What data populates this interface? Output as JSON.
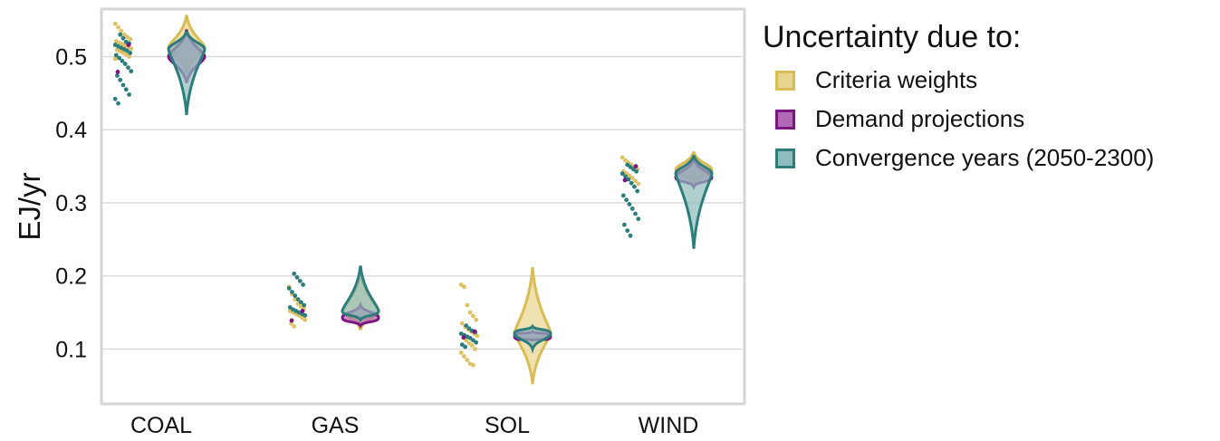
{
  "chart_data": {
    "type": "violin",
    "ylabel": "EJ/yr",
    "xlabel": "",
    "ylim": [
      0.025,
      0.565
    ],
    "yticks": [
      "0.1",
      "0.2",
      "0.3",
      "0.4",
      "0.5"
    ],
    "categories": [
      "COAL",
      "GAS",
      "SOL",
      "WIND"
    ],
    "grid": true,
    "legend_position": "right",
    "legend": {
      "title": "Uncertainty due to:",
      "entries": [
        {
          "label": "Criteria weights",
          "fill": "#e8d48e",
          "stroke": "#d8bc55"
        },
        {
          "label": "Demand projections",
          "fill": "#b069b4",
          "stroke": "#7d1583"
        },
        {
          "label": "Convergence years (2050-2300)",
          "fill": "#8fbcbc",
          "stroke": "#2e7d7d"
        }
      ]
    },
    "series": [
      {
        "name": "Criteria weights",
        "color": "#ddc266",
        "violins": [
          {
            "category": "COAL",
            "center": 0.512,
            "min": 0.478,
            "max": 0.557
          },
          {
            "category": "GAS",
            "center": 0.152,
            "min": 0.126,
            "max": 0.205
          },
          {
            "category": "SOL",
            "center": 0.122,
            "min": 0.052,
            "max": 0.212
          },
          {
            "category": "WIND",
            "center": 0.345,
            "min": 0.325,
            "max": 0.37
          }
        ],
        "points": {
          "COAL": [
            0.545,
            0.54,
            0.535,
            0.53,
            0.527,
            0.524,
            0.521,
            0.519,
            0.517,
            0.515,
            0.513,
            0.511,
            0.509,
            0.507,
            0.505,
            0.503,
            0.5,
            0.497
          ],
          "GAS": [
            0.185,
            0.175,
            0.168,
            0.162,
            0.158,
            0.155,
            0.152,
            0.15,
            0.148,
            0.146,
            0.143,
            0.14,
            0.135,
            0.131
          ],
          "SOL": [
            0.188,
            0.185,
            0.16,
            0.15,
            0.145,
            0.14,
            0.135,
            0.13,
            0.127,
            0.124,
            0.121,
            0.118,
            0.115,
            0.112,
            0.108,
            0.105,
            0.1,
            0.095,
            0.09,
            0.085,
            0.08,
            0.078
          ],
          "WIND": [
            0.362,
            0.358,
            0.355,
            0.352,
            0.349,
            0.346,
            0.343,
            0.34,
            0.337,
            0.334,
            0.33,
            0.326
          ]
        }
      },
      {
        "name": "Demand projections",
        "color": "#7d1583",
        "violins": [
          {
            "category": "COAL",
            "center": 0.5,
            "min": 0.464,
            "max": 0.537
          },
          {
            "category": "GAS",
            "center": 0.143,
            "min": 0.132,
            "max": 0.16
          },
          {
            "category": "SOL",
            "center": 0.117,
            "min": 0.112,
            "max": 0.124
          },
          {
            "category": "WIND",
            "center": 0.335,
            "min": 0.322,
            "max": 0.36
          }
        ],
        "points": {
          "COAL": [
            0.516,
            0.479
          ],
          "GAS": [
            0.152,
            0.139
          ],
          "SOL": [
            0.124,
            0.116
          ],
          "WIND": [
            0.35,
            0.331
          ]
        }
      },
      {
        "name": "Convergence years (2050-2300)",
        "color": "#2e7d7d",
        "violins": [
          {
            "category": "COAL",
            "center": 0.51,
            "min": 0.42,
            "max": 0.535
          },
          {
            "category": "GAS",
            "center": 0.152,
            "min": 0.14,
            "max": 0.214
          },
          {
            "category": "SOL",
            "center": 0.121,
            "min": 0.1,
            "max": 0.131
          },
          {
            "category": "WIND",
            "center": 0.34,
            "min": 0.237,
            "max": 0.365
          }
        ],
        "points": {
          "COAL": [
            0.53,
            0.525,
            0.52,
            0.518,
            0.516,
            0.514,
            0.512,
            0.51,
            0.508,
            0.505,
            0.502,
            0.498,
            0.494,
            0.49,
            0.485,
            0.48,
            0.474,
            0.468,
            0.461,
            0.455,
            0.448,
            0.442,
            0.436
          ],
          "GAS": [
            0.203,
            0.198,
            0.193,
            0.188,
            0.183,
            0.178,
            0.173,
            0.168,
            0.164,
            0.16,
            0.157,
            0.154,
            0.152,
            0.15,
            0.148,
            0.146
          ],
          "SOL": [
            0.132,
            0.128,
            0.125,
            0.123,
            0.121,
            0.119,
            0.117,
            0.115,
            0.112,
            0.109,
            0.106,
            0.103
          ],
          "WIND": [
            0.352,
            0.349,
            0.346,
            0.343,
            0.34,
            0.336,
            0.332,
            0.327,
            0.322,
            0.316,
            0.31,
            0.304,
            0.298,
            0.292,
            0.285,
            0.278,
            0.27,
            0.262,
            0.255
          ]
        }
      }
    ]
  }
}
